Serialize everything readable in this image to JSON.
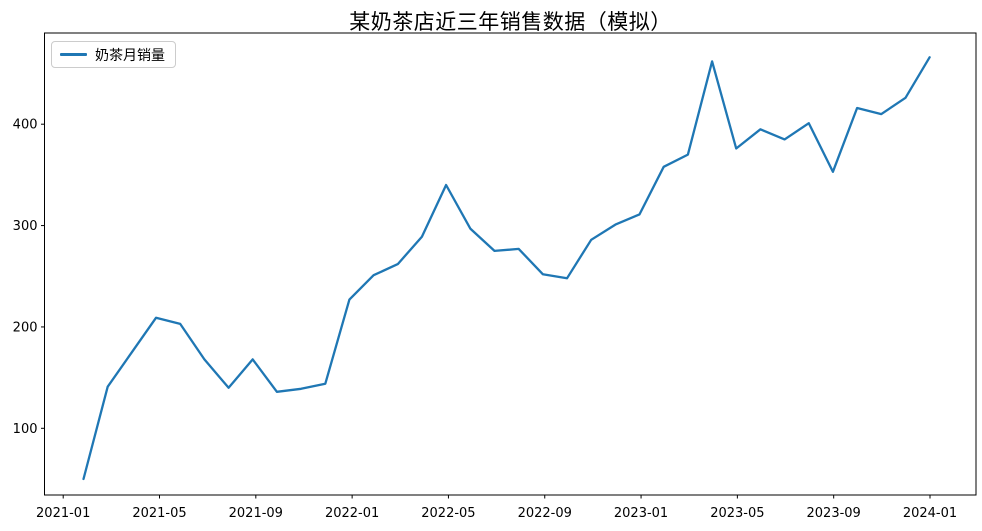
{
  "title": "某奶茶店近三年销售数据（模拟）",
  "legend": {
    "label": "奶茶月销量",
    "position": "upper left"
  },
  "colors": {
    "line": "#1f77b4",
    "axis": "#000000",
    "background": "#ffffff",
    "legend_border": "#cccccc"
  },
  "chart_data": {
    "type": "line",
    "title": "某奶茶店近三年销售数据（模拟）",
    "xlabel": "",
    "ylabel": "",
    "grid": false,
    "legend": {
      "label": "奶茶月销量",
      "position": "upper left"
    },
    "x": [
      "2021-01",
      "2021-02",
      "2021-03",
      "2021-04",
      "2021-05",
      "2021-06",
      "2021-07",
      "2021-08",
      "2021-09",
      "2021-10",
      "2021-11",
      "2021-12",
      "2022-01",
      "2022-02",
      "2022-03",
      "2022-04",
      "2022-05",
      "2022-06",
      "2022-07",
      "2022-08",
      "2022-09",
      "2022-10",
      "2022-11",
      "2022-12",
      "2023-01",
      "2023-02",
      "2023-03",
      "2023-04",
      "2023-05",
      "2023-06",
      "2023-07",
      "2023-08",
      "2023-09",
      "2023-10",
      "2023-11",
      "2023-12"
    ],
    "series": [
      {
        "name": "奶茶月销量",
        "color": "#1f77b4",
        "values": [
          50,
          141,
          175,
          209,
          203,
          168,
          140,
          168,
          136,
          139,
          144,
          227,
          251,
          262,
          289,
          340,
          297,
          275,
          277,
          252,
          248,
          286,
          301,
          311,
          358,
          370,
          462,
          376,
          395,
          385,
          401,
          353,
          416,
          410,
          426,
          466
        ]
      }
    ],
    "x_tick_labels": [
      "2021-01",
      "2021-05",
      "2021-09",
      "2022-01",
      "2022-05",
      "2022-09",
      "2023-01",
      "2023-05",
      "2023-09",
      "2024-01"
    ],
    "y_ticks": [
      100,
      200,
      300,
      400
    ],
    "ylim": [
      34,
      490
    ]
  }
}
